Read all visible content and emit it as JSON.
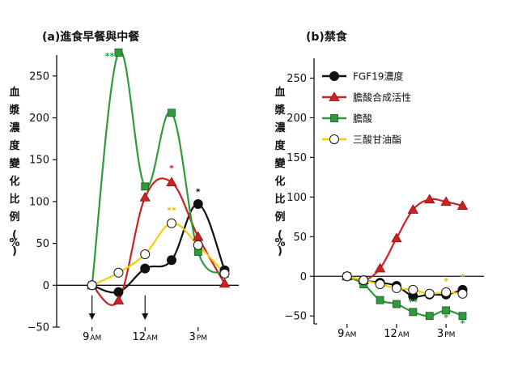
{
  "chart_data": [
    {
      "type": "line",
      "title": "(a)進食早餐與中餐",
      "ylabel": "血漿濃度變化比例(%)",
      "ylim": [
        -50,
        275
      ],
      "yticks": [
        -50,
        0,
        50,
        100,
        150,
        200,
        250
      ],
      "xlim": [
        7.0,
        17.3
      ],
      "xticks": [
        {
          "x": 9,
          "label": "9 AM"
        },
        {
          "x": 12,
          "label": "12 AM"
        },
        {
          "x": 15,
          "label": "3 PM"
        }
      ],
      "meal_arrows_x": [
        9,
        12
      ],
      "series": [
        {
          "name": "FGF19濃度",
          "color": "#111111",
          "marker": "circle",
          "points": [
            [
              9,
              0
            ],
            [
              10.5,
              -8
            ],
            [
              12,
              20
            ],
            [
              13.5,
              30
            ],
            [
              15,
              97
            ],
            [
              16.5,
              18
            ]
          ]
        },
        {
          "name": "膽酸合成活性",
          "color": "#cc2222",
          "marker": "triangle",
          "points": [
            [
              9,
              0
            ],
            [
              10.5,
              -18
            ],
            [
              12,
              105
            ],
            [
              13.5,
              123
            ],
            [
              15,
              58
            ],
            [
              16.5,
              2
            ]
          ]
        },
        {
          "name": "膽酸",
          "color": "#2e9a3c",
          "marker": "square",
          "points": [
            [
              9,
              0
            ],
            [
              10.5,
              278
            ],
            [
              12,
              118
            ],
            [
              13.5,
              206
            ],
            [
              15,
              40
            ],
            [
              16.5,
              14
            ]
          ]
        },
        {
          "name": "三酸甘油酯",
          "color": "#f0d000",
          "marker": "open-circle",
          "points": [
            [
              9,
              0
            ],
            [
              10.5,
              15
            ],
            [
              12,
              37
            ],
            [
              13.5,
              74
            ],
            [
              15,
              48
            ],
            [
              16.5,
              14
            ]
          ]
        }
      ],
      "annotations": [
        {
          "text": "**",
          "x": 10.0,
          "y": 270,
          "color": "#2e9a3c"
        },
        {
          "text": "*",
          "x": 13.5,
          "y": 136,
          "color": "#cc2222"
        },
        {
          "text": "**",
          "x": 13.5,
          "y": 86,
          "color": "#e0c000"
        },
        {
          "text": "*",
          "x": 15,
          "y": 108,
          "color": "#111111"
        }
      ]
    },
    {
      "type": "line",
      "title": "(b)禁食",
      "ylabel": "血漿濃度變化比例(%)",
      "ylim": [
        -60,
        275
      ],
      "yticks": [
        -50,
        0,
        50,
        100,
        150,
        200,
        250
      ],
      "xlim": [
        7.0,
        17.3
      ],
      "xticks": [
        {
          "x": 9,
          "label": "9 AM"
        },
        {
          "x": 12,
          "label": "12 AM"
        },
        {
          "x": 15,
          "label": "3 PM"
        }
      ],
      "legend_position": "top-right",
      "series": [
        {
          "name": "FGF19濃度",
          "color": "#111111",
          "marker": "circle",
          "points": [
            [
              9,
              0
            ],
            [
              10,
              -5
            ],
            [
              11,
              -8
            ],
            [
              12,
              -12
            ],
            [
              13,
              -25
            ],
            [
              14,
              -23
            ],
            [
              15,
              -23
            ],
            [
              16,
              -17
            ]
          ]
        },
        {
          "name": "膽酸合成活性",
          "color": "#cc2222",
          "marker": "triangle",
          "points": [
            [
              9,
              0
            ],
            [
              10,
              -5
            ],
            [
              11,
              10
            ],
            [
              12,
              48
            ],
            [
              13,
              84
            ],
            [
              14,
              97
            ],
            [
              15,
              94
            ],
            [
              16,
              89
            ]
          ]
        },
        {
          "name": "膽酸",
          "color": "#2e9a3c",
          "marker": "square",
          "points": [
            [
              9,
              0
            ],
            [
              10,
              -10
            ],
            [
              11,
              -30
            ],
            [
              12,
              -35
            ],
            [
              13,
              -45
            ],
            [
              14,
              -50
            ],
            [
              15,
              -43
            ],
            [
              16,
              -50
            ]
          ]
        },
        {
          "name": "三酸甘油酯",
          "color": "#f0d000",
          "marker": "open-circle",
          "points": [
            [
              9,
              0
            ],
            [
              10,
              -5
            ],
            [
              11,
              -10
            ],
            [
              12,
              -15
            ],
            [
              13,
              -17
            ],
            [
              14,
              -22
            ],
            [
              15,
              -20
            ],
            [
              16,
              -22
            ]
          ]
        }
      ],
      "annotations": [
        {
          "text": "**",
          "x": 13,
          "y": -36,
          "color": "#2e9a3c"
        },
        {
          "text": "*",
          "x": 15,
          "y": -10,
          "color": "#e0c000"
        },
        {
          "text": "*",
          "x": 16,
          "y": -5,
          "color": "#e0c000"
        },
        {
          "text": "*",
          "x": 15,
          "y": -56,
          "color": "#2e9a3c"
        },
        {
          "text": "*",
          "x": 16,
          "y": -63,
          "color": "#2e9a3c"
        }
      ]
    }
  ]
}
